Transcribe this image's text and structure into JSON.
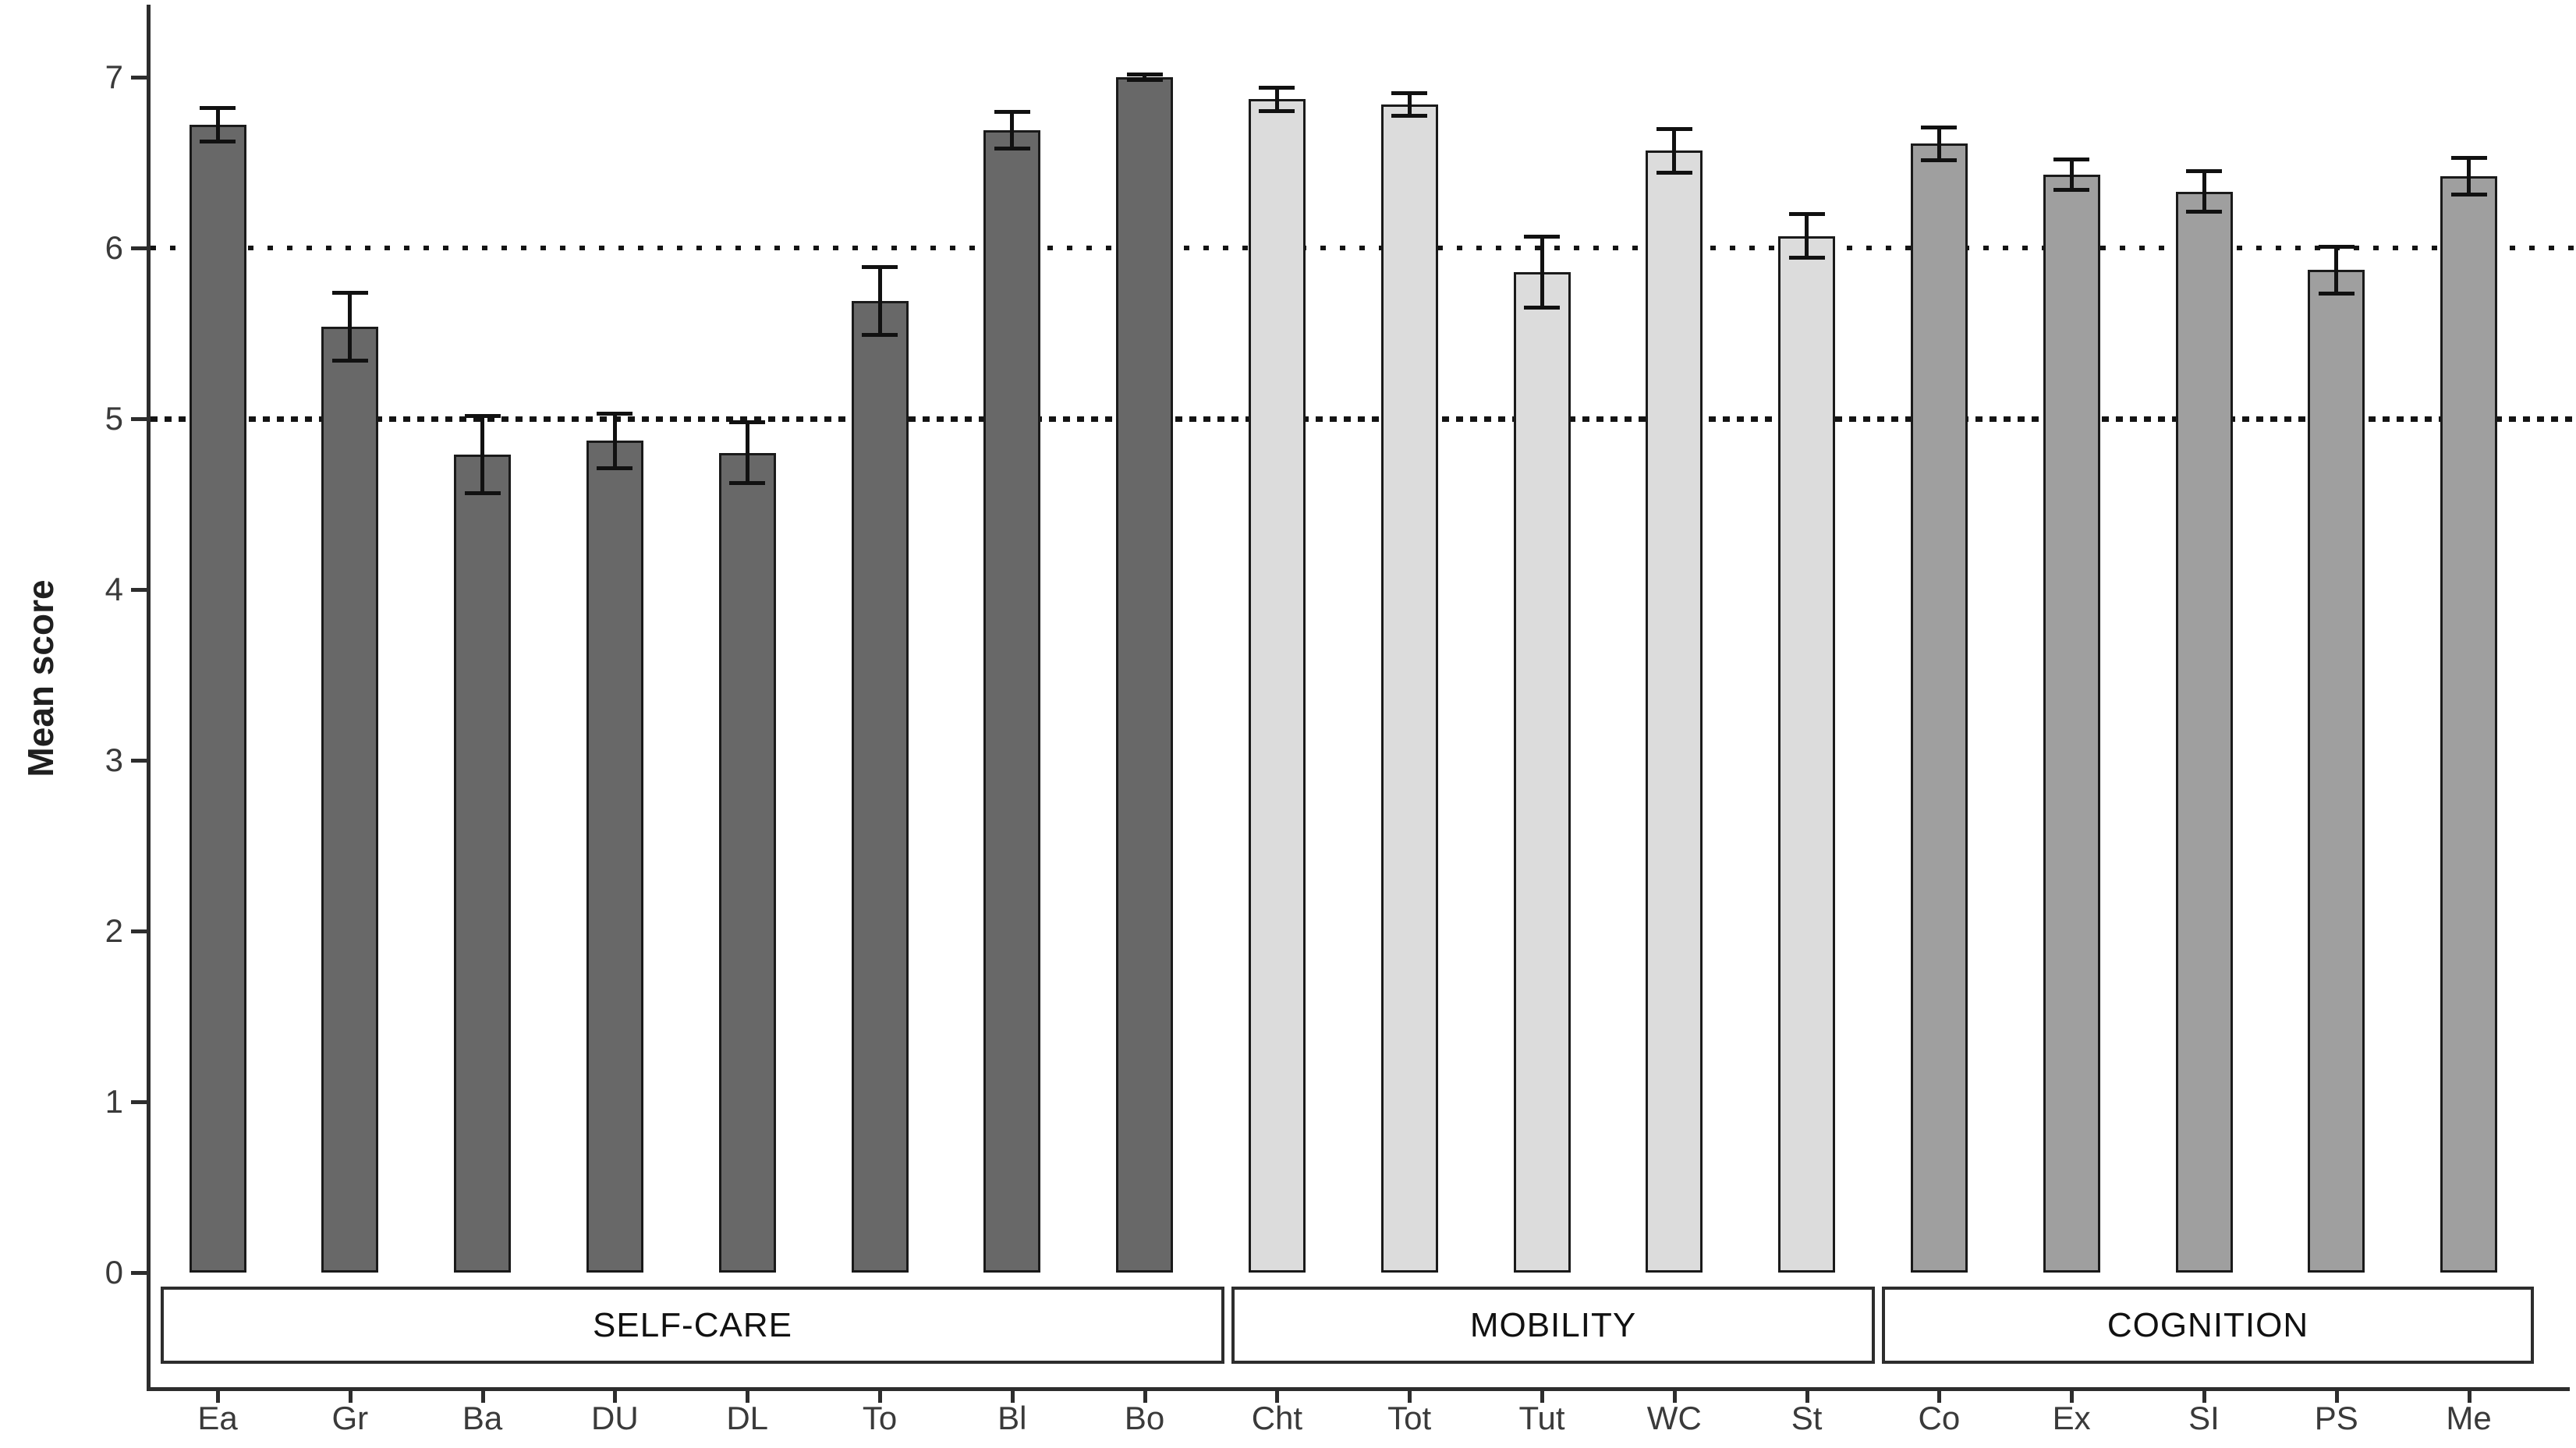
{
  "figure": {
    "background": "#ffffff",
    "y_axis_title": "Mean score"
  },
  "chart_data": {
    "type": "bar",
    "title": "",
    "xlabel": "",
    "ylabel": "Mean score",
    "ylim": [
      0,
      7
    ],
    "yticks": [
      "0",
      "1",
      "2",
      "3",
      "4",
      "5",
      "6",
      "7"
    ],
    "grid": "off",
    "legend": "none",
    "error_bars": true,
    "reference_lines": [
      {
        "value": 6,
        "style": "sparse-dotted"
      },
      {
        "value": 5,
        "style": "dense-dotted"
      }
    ],
    "groups": [
      {
        "name": "SELF-CARE",
        "bar_color": "#686868",
        "bars": [
          {
            "label": "Ea",
            "value": 6.72,
            "error": 0.1
          },
          {
            "label": "Gr",
            "value": 5.54,
            "error": 0.2
          },
          {
            "label": "Ba",
            "value": 4.79,
            "error": 0.23
          },
          {
            "label": "DU",
            "value": 4.87,
            "error": 0.16
          },
          {
            "label": "DL",
            "value": 4.8,
            "error": 0.18
          },
          {
            "label": "To",
            "value": 5.69,
            "error": 0.2
          },
          {
            "label": "Bl",
            "value": 6.69,
            "error": 0.11
          },
          {
            "label": "Bo",
            "value": 7.0,
            "error": 0.02
          }
        ]
      },
      {
        "name": "MOBILITY",
        "bar_color": "#dcdcdc",
        "bars": [
          {
            "label": "Cht",
            "value": 6.87,
            "error": 0.07
          },
          {
            "label": "Tot",
            "value": 6.84,
            "error": 0.07
          },
          {
            "label": "Tut",
            "value": 5.86,
            "error": 0.21
          },
          {
            "label": "WC",
            "value": 6.57,
            "error": 0.13
          },
          {
            "label": "St",
            "value": 6.07,
            "error": 0.13
          }
        ]
      },
      {
        "name": "COGNITION",
        "bar_color": "#9f9f9f",
        "bars": [
          {
            "label": "Co",
            "value": 6.61,
            "error": 0.1
          },
          {
            "label": "Ex",
            "value": 6.43,
            "error": 0.09
          },
          {
            "label": "SI",
            "value": 6.33,
            "error": 0.12
          },
          {
            "label": "PS",
            "value": 5.87,
            "error": 0.14
          },
          {
            "label": "Me",
            "value": 6.42,
            "error": 0.11
          }
        ]
      }
    ]
  },
  "colors": {
    "axis": "#2d2d2d",
    "tick_label": "#3a3a3a",
    "bar_border": "#1a1a1a",
    "error_bar": "#111111",
    "reference_line": "#141414",
    "group_box_border": "#2d2d2d",
    "background": "#ffffff"
  }
}
